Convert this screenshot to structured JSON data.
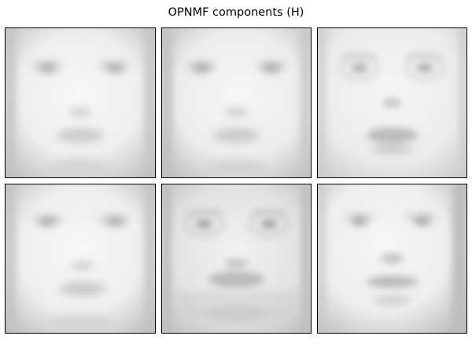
{
  "figure": {
    "title": "OPNMF components (H)"
  },
  "panels": [
    {
      "name": "component-1",
      "variant": "smooth"
    },
    {
      "name": "component-2",
      "variant": "smooth"
    },
    {
      "name": "component-3",
      "variant": "mustache-glasses"
    },
    {
      "name": "component-4",
      "variant": "smooth"
    },
    {
      "name": "component-5",
      "variant": "glasses-textured"
    },
    {
      "name": "component-6",
      "variant": "mustache"
    }
  ],
  "colors": {
    "background": "#ffffff",
    "frame": "#000000",
    "colormap": "gray"
  }
}
